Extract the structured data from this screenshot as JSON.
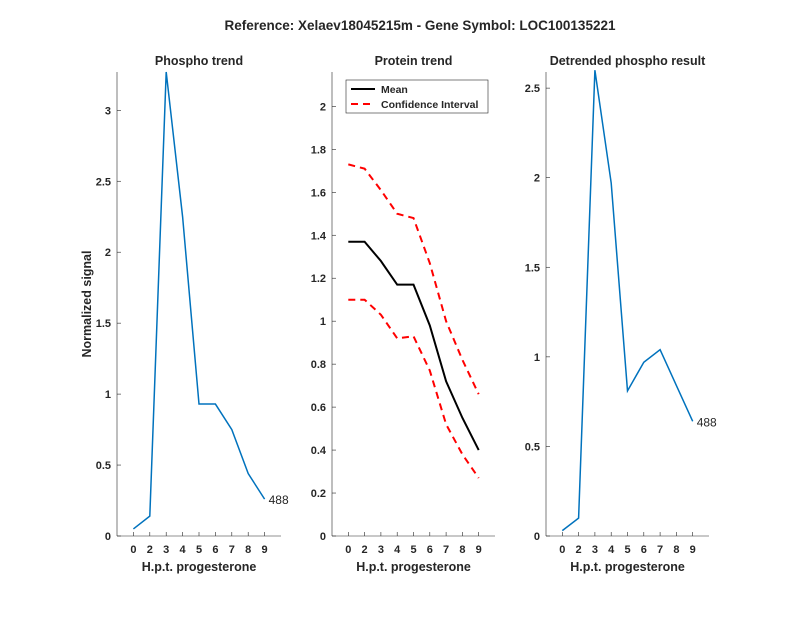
{
  "title": "Reference:  Xelaev18045215m - Gene Symbol:  LOC100135221",
  "chart_data": [
    {
      "type": "line",
      "title": "Phospho trend",
      "xlabel": "H.p.t. progesterone",
      "ylabel": "Normalized signal",
      "x_tick_labels": [
        "0",
        "2",
        "3",
        "4",
        "5",
        "6",
        "7",
        "8",
        "9"
      ],
      "y_ticks": [
        0,
        0.5,
        1,
        1.5,
        2,
        2.5,
        3
      ],
      "y_tick_labels": [
        "0",
        "0.5",
        "1",
        "1.5",
        "2",
        "2.5",
        "3"
      ],
      "ylim": [
        0,
        3.27
      ],
      "series": [
        {
          "name": "phospho",
          "color": "#0072BD",
          "style": "solid",
          "values": [
            0.05,
            0.14,
            3.27,
            2.25,
            0.93,
            0.93,
            0.75,
            0.44,
            0.26
          ]
        }
      ],
      "annotation": "488"
    },
    {
      "type": "line",
      "title": "Protein trend",
      "xlabel": "H.p.t. progesterone",
      "ylabel": "",
      "x_tick_labels": [
        "0",
        "2",
        "3",
        "4",
        "5",
        "6",
        "7",
        "8",
        "9"
      ],
      "y_ticks": [
        0,
        0.2,
        0.4,
        0.6,
        0.8,
        1,
        1.2,
        1.4,
        1.6,
        1.8,
        2
      ],
      "y_tick_labels": [
        "0",
        "0.2",
        "0.4",
        "0.6",
        "0.8",
        "1",
        "1.2",
        "1.4",
        "1.6",
        "1.8",
        "2"
      ],
      "ylim": [
        0,
        2.16
      ],
      "legend": {
        "placement": "top-left",
        "entries": [
          "Mean",
          "Confidence Interval"
        ]
      },
      "series": [
        {
          "name": "Mean",
          "color": "#000000",
          "style": "solid",
          "values": [
            1.37,
            1.37,
            1.28,
            1.17,
            1.17,
            0.98,
            0.72,
            0.55,
            0.4
          ]
        },
        {
          "name": "Confidence Interval",
          "color": "#FF0000",
          "style": "dashed",
          "values": [
            1.73,
            1.71,
            1.61,
            1.5,
            1.48,
            1.27,
            1.0,
            0.82,
            0.66
          ]
        },
        {
          "name": "Confidence Interval lower",
          "color": "#FF0000",
          "style": "dashed",
          "values": [
            1.1,
            1.1,
            1.03,
            0.92,
            0.93,
            0.77,
            0.52,
            0.38,
            0.27
          ]
        }
      ]
    },
    {
      "type": "line",
      "title": "Detrended phospho result",
      "xlabel": "H.p.t. progesterone",
      "ylabel": "",
      "x_tick_labels": [
        "0",
        "2",
        "3",
        "4",
        "5",
        "6",
        "7",
        "8",
        "9"
      ],
      "y_ticks": [
        0,
        0.5,
        1,
        1.5,
        2,
        2.5
      ],
      "y_tick_labels": [
        "0",
        "0.5",
        "1",
        "1.5",
        "2",
        "2.5"
      ],
      "ylim": [
        0,
        2.59
      ],
      "series": [
        {
          "name": "detrended",
          "color": "#0072BD",
          "style": "solid",
          "values": [
            0.03,
            0.1,
            2.6,
            1.97,
            0.81,
            0.97,
            1.04,
            0.84,
            0.64
          ]
        }
      ],
      "annotation": "488"
    }
  ]
}
